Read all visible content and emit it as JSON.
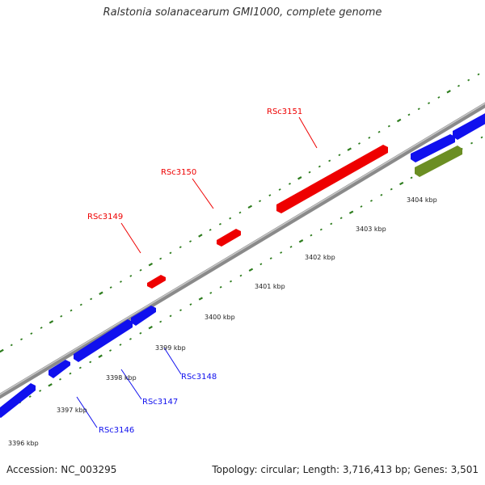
{
  "title": "Ralstonia solanacearum GMI1000, complete genome",
  "accession_text": "Accession: NC_003295",
  "topology_text": "Topology: circular; Length: 3,716,413 bp; Genes: 3,501",
  "colors": {
    "backbone": "#8a8a8a",
    "backbone_light": "#c8c8c8",
    "ticks": "#2e7d1e",
    "forward_gene": "#ee0000",
    "reverse_gene": "#1010ee",
    "rna_gene": "#6b8e23"
  },
  "scale": {
    "unit": "kbp",
    "tick_labels": [
      "3396 kbp",
      "3397 kbp",
      "3398 kbp",
      "3399 kbp",
      "3400 kbp",
      "3401 kbp",
      "3402 kbp",
      "3403 kbp",
      "3404 kbp"
    ]
  },
  "genes": {
    "forward_labeled": [
      "RSc3149",
      "RSc3150",
      "RSc3151"
    ],
    "reverse_labeled": [
      "RSc3146",
      "RSc3147",
      "RSc3148"
    ]
  }
}
